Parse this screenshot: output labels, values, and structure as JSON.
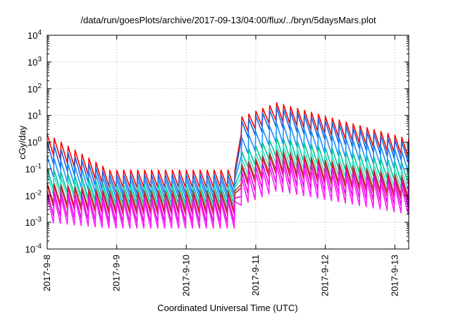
{
  "chart_data": {
    "type": "line",
    "title": "/data/run/goesPlots/archive/2017-09-13/04:00/flux/../bryn/5daysMars.plot",
    "xlabel": "Coordinated Universal Time (UTC)",
    "ylabel": "cGy/day",
    "yscale": "log",
    "ylim": [
      0.0001,
      10000
    ],
    "xlim": [
      0,
      5.2
    ],
    "grid": true,
    "legend": "none",
    "x_ticks": [
      {
        "x": 0,
        "label": "2017-9-8"
      },
      {
        "x": 1,
        "label": "2017-9-9"
      },
      {
        "x": 2,
        "label": "2017-9-10"
      },
      {
        "x": 3,
        "label": "2017-9-11"
      },
      {
        "x": 4,
        "label": "2017-9-12"
      },
      {
        "x": 5,
        "label": "2017-9-13"
      }
    ],
    "y_ticks": [
      {
        "exp": -4,
        "base": "10",
        "sup": "-4"
      },
      {
        "exp": -3,
        "base": "10",
        "sup": "-3"
      },
      {
        "exp": -2,
        "base": "10",
        "sup": "-2"
      },
      {
        "exp": -1,
        "base": "10",
        "sup": "-1"
      },
      {
        "exp": 0,
        "base": "10",
        "sup": "0"
      },
      {
        "exp": 1,
        "base": "10",
        "sup": "1"
      },
      {
        "exp": 2,
        "base": "10",
        "sup": "2"
      },
      {
        "exp": 3,
        "base": "10",
        "sup": "3"
      },
      {
        "exp": 4,
        "base": "10",
        "sup": "4"
      }
    ],
    "pattern": "sawtooth, about 10 cycles per day",
    "series": [
      {
        "color": "#ff0000",
        "y_start": 2.0,
        "y_quiet": 0.09,
        "y_event_peak": 30,
        "y_end": 1.3,
        "dip": 4.5
      },
      {
        "color": "#1e64dc",
        "y_start": 1.0,
        "y_quiet": 0.06,
        "y_event_peak": 20,
        "y_end": 0.9,
        "dip": 5.0
      },
      {
        "color": "#1e90ff",
        "y_start": 0.3,
        "y_quiet": 0.04,
        "y_event_peak": 5,
        "y_end": 0.4,
        "dip": 5.0
      },
      {
        "color": "#00c896",
        "y_start": 0.1,
        "y_quiet": 0.025,
        "y_event_peak": 1.5,
        "y_end": 0.15,
        "dip": 5.0
      },
      {
        "color": "#40e0d0",
        "y_start": 0.06,
        "y_quiet": 0.02,
        "y_event_peak": 0.8,
        "y_end": 0.08,
        "dip": 5.0
      },
      {
        "color": "#a0522d",
        "y_start": 0.03,
        "y_quiet": 0.015,
        "y_event_peak": 0.5,
        "y_end": 0.05,
        "dip": 5.5
      },
      {
        "color": "#dc143c",
        "y_start": 0.025,
        "y_quiet": 0.012,
        "y_event_peak": 0.4,
        "y_end": 0.04,
        "dip": 6.0
      },
      {
        "color": "#e000e0",
        "y_start": 0.015,
        "y_quiet": 0.008,
        "y_event_peak": 0.25,
        "y_end": 0.03,
        "dip": 8.0
      },
      {
        "color": "#ff1aff",
        "y_start": 0.01,
        "y_quiet": 0.006,
        "y_event_peak": 0.15,
        "y_end": 0.02,
        "dip": 10.0
      }
    ],
    "event_onset": 2.73,
    "event_peak_at": 3.3
  }
}
